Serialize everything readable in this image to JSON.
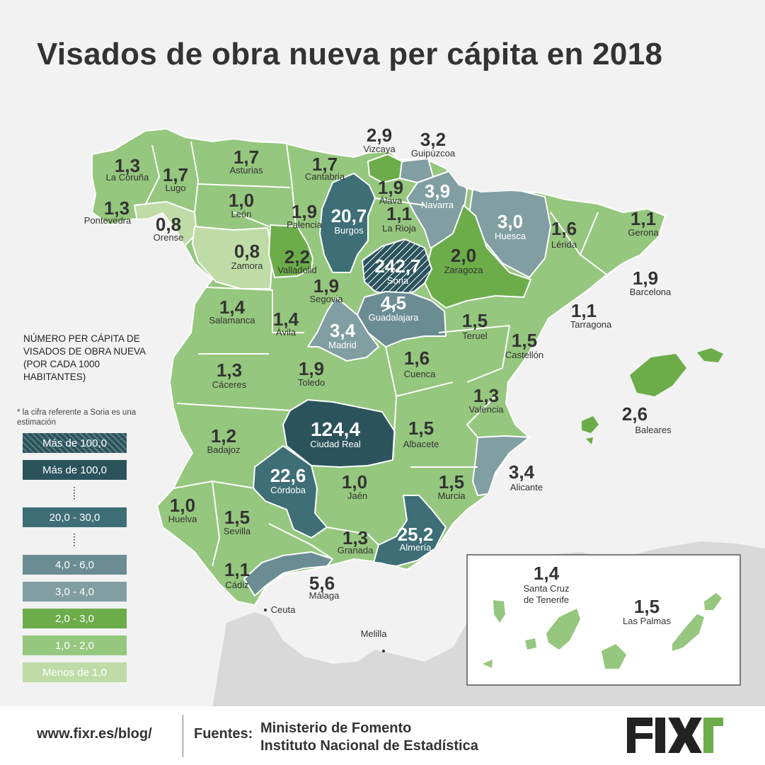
{
  "title": "Visados de obra nueva per cápita en 2018",
  "colors": {
    "lt": "#95c77e",
    "gr": "#6cad4a",
    "pale": "#bfdca7",
    "s34": "#819fa3",
    "s46": "#6b8c93",
    "s2030": "#3e6e76",
    "s100": "#2b535c",
    "bg": "#f2f2f2",
    "africa": "#d9d9d9"
  },
  "provinces": [
    {
      "name": "La Coruña",
      "value": "1,3",
      "cat": "1,0 - 2,0"
    },
    {
      "name": "Lugo",
      "value": "1,7",
      "cat": "1,0 - 2,0"
    },
    {
      "name": "Asturias",
      "value": "1,7",
      "cat": "1,0 - 2,0"
    },
    {
      "name": "Cantabria",
      "value": "1,7",
      "cat": "1,0 - 2,0"
    },
    {
      "name": "Vizcaya",
      "value": "2,9",
      "cat": "2,0 - 3,0"
    },
    {
      "name": "Guipúzcoa",
      "value": "3,2",
      "cat": "3,0 - 4,0"
    },
    {
      "name": "Pontevedra",
      "value": "1,3",
      "cat": "1,0 - 2,0"
    },
    {
      "name": "Orense",
      "value": "0,8",
      "cat": "Menos de 1,0"
    },
    {
      "name": "León",
      "value": "1,0",
      "cat": "1,0 - 2,0"
    },
    {
      "name": "Palencia",
      "value": "1,9",
      "cat": "1,0 - 2,0"
    },
    {
      "name": "Burgos",
      "value": "20,7",
      "cat": "20,0 - 30,0"
    },
    {
      "name": "Álava",
      "value": "1,9",
      "cat": "1,0 - 2,0"
    },
    {
      "name": "La Rioja",
      "value": "1,1",
      "cat": "1,0 - 2,0"
    },
    {
      "name": "Navarra",
      "value": "3,9",
      "cat": "3,0 - 4,0"
    },
    {
      "name": "Huesca",
      "value": "3,0",
      "cat": "3,0 - 4,0"
    },
    {
      "name": "Lérida",
      "value": "1,6",
      "cat": "1,0 - 2,0"
    },
    {
      "name": "Gerona",
      "value": "1,1",
      "cat": "1,0 - 2,0"
    },
    {
      "name": "Barcelona",
      "value": "1,9",
      "cat": "1,0 - 2,0"
    },
    {
      "name": "Tarragona",
      "value": "1,1",
      "cat": "1,0 - 2,0"
    },
    {
      "name": "Zamora",
      "value": "0,8",
      "cat": "Menos de 1,0"
    },
    {
      "name": "Valladolid",
      "value": "2,2",
      "cat": "2,0 - 3,0"
    },
    {
      "name": "Soria",
      "value": "242,7",
      "cat": "Más de 100,0 (estimación)"
    },
    {
      "name": "Zaragoza",
      "value": "2,0",
      "cat": "2,0 - 3,0"
    },
    {
      "name": "Salamanca",
      "value": "1,4",
      "cat": "1,0 - 2,0"
    },
    {
      "name": "Segovia",
      "value": "1,9",
      "cat": "1,0 - 2,0"
    },
    {
      "name": "Guadalajara",
      "value": "4,5",
      "cat": "4,0 - 6,0"
    },
    {
      "name": "Ávila",
      "value": "1,4",
      "cat": "1,0 - 2,0"
    },
    {
      "name": "Madrid",
      "value": "3,4",
      "cat": "3,0 - 4,0"
    },
    {
      "name": "Teruel",
      "value": "1,5",
      "cat": "1,0 - 2,0"
    },
    {
      "name": "Castellón",
      "value": "1,5",
      "cat": "1,0 - 2,0"
    },
    {
      "name": "Cáceres",
      "value": "1,3",
      "cat": "1,0 - 2,0"
    },
    {
      "name": "Toledo",
      "value": "1,9",
      "cat": "1,0 - 2,0"
    },
    {
      "name": "Cuenca",
      "value": "1,6",
      "cat": "1,0 - 2,0"
    },
    {
      "name": "Valencia",
      "value": "1,3",
      "cat": "1,0 - 2,0"
    },
    {
      "name": "Baleares",
      "value": "2,6",
      "cat": "2,0 - 3,0"
    },
    {
      "name": "Badajoz",
      "value": "1,2",
      "cat": "1,0 - 2,0"
    },
    {
      "name": "Ciudad Real",
      "value": "124,4",
      "cat": "Más de 100,0"
    },
    {
      "name": "Albacete",
      "value": "1,5",
      "cat": "1,0 - 2,0"
    },
    {
      "name": "Alicante",
      "value": "3,4",
      "cat": "3,0 - 4,0"
    },
    {
      "name": "Córdoba",
      "value": "22,6",
      "cat": "20,0 - 30,0"
    },
    {
      "name": "Jaén",
      "value": "1,0",
      "cat": "1,0 - 2,0"
    },
    {
      "name": "Murcia",
      "value": "1,5",
      "cat": "1,0 - 2,0"
    },
    {
      "name": "Huelva",
      "value": "1,0",
      "cat": "1,0 - 2,0"
    },
    {
      "name": "Sevilla",
      "value": "1,5",
      "cat": "1,0 - 2,0"
    },
    {
      "name": "Granada",
      "value": "1,3",
      "cat": "1,0 - 2,0"
    },
    {
      "name": "Almería",
      "value": "25,2",
      "cat": "20,0 - 30,0"
    },
    {
      "name": "Cádiz",
      "value": "1,1",
      "cat": "1,0 - 2,0"
    },
    {
      "name": "Málaga",
      "value": "5,6",
      "cat": "4,0 - 6,0"
    },
    {
      "name": "Santa Cruz de Tenerife",
      "value": "1,4",
      "cat": "1,0 - 2,0"
    },
    {
      "name": "Las Palmas",
      "value": "1,5",
      "cat": "1,0 - 2,0"
    }
  ],
  "cities": {
    "ceuta": "Ceuta",
    "melilla": "Melilla"
  },
  "legend": {
    "title": "NÚMERO PER CÁPITA DE VISADOS DE OBRA NUEVA (POR CADA 1000 HABITANTES)",
    "note": "* la cifra referente a Soria es una estimación",
    "items": [
      {
        "label": "Más de 100,0",
        "color": "#2b535c",
        "hatched": true
      },
      {
        "label": "Más de 100,0",
        "color": "#2b535c",
        "hatched": false
      },
      {
        "label": "20,0 - 30,0",
        "color": "#3e6e76",
        "hatched": false
      },
      {
        "label": "4,0 - 6,0",
        "color": "#6b8c93",
        "hatched": false
      },
      {
        "label": "3,0 - 4,0",
        "color": "#819fa3",
        "hatched": false
      },
      {
        "label": "2,0 - 3,0",
        "color": "#6cad4a",
        "hatched": false
      },
      {
        "label": "1,0 - 2,0",
        "color": "#95c77e",
        "hatched": false
      },
      {
        "label": "Menos de 1,0",
        "color": "#bfdca7",
        "hatched": false
      }
    ]
  },
  "footer": {
    "url": "www.fixr.es/blog/",
    "sources_label": "Fuentes:",
    "source1": "Ministerio de Fomento",
    "source2": "Instituto Nacional de Estadística",
    "logo": "FIXR"
  }
}
